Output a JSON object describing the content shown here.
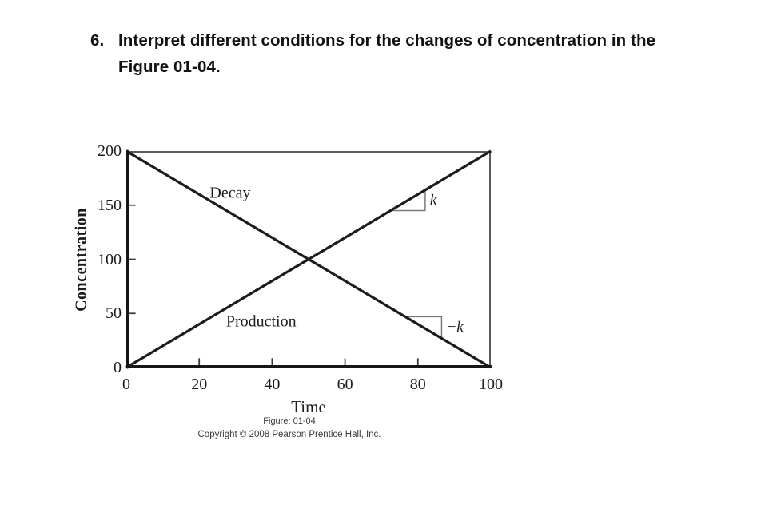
{
  "question": {
    "number": "6.",
    "line1": "Interpret different conditions for the changes of concentration in the",
    "line2": "Figure 01-04."
  },
  "figure": {
    "caption_figure": "Figure: 01-04",
    "caption_copyright": "Copyright © 2008 Pearson Prentice Hall, Inc."
  },
  "chart_data": {
    "type": "line",
    "title": "",
    "xlabel": "Time",
    "ylabel": "Concentration",
    "xlim": [
      0,
      100
    ],
    "ylim": [
      0,
      200
    ],
    "xticks": [
      0,
      20,
      40,
      60,
      80,
      100
    ],
    "yticks": [
      0,
      50,
      100,
      150,
      200
    ],
    "grid": false,
    "legend": "inline-labels",
    "line_color": "#1c1c1c",
    "frame_color": "#5a5a5a",
    "marker_color": "#7a7a7a",
    "series": [
      {
        "name": "Decay",
        "x": [
          0,
          100
        ],
        "y": [
          200,
          0
        ]
      },
      {
        "name": "Production",
        "x": [
          0,
          100
        ],
        "y": [
          0,
          200
        ]
      }
    ],
    "series_labels": [
      {
        "text": "Decay",
        "x": 28.5,
        "y": 161
      },
      {
        "text": "Production",
        "x": 37,
        "y": 42
      }
    ],
    "slope_markers": [
      {
        "text": "k",
        "series": "Production",
        "x1": 72.5,
        "x2": 82
      },
      {
        "text": "−k",
        "series": "Decay",
        "x1": 76.5,
        "x2": 86.5
      }
    ],
    "intersection_note": ""
  }
}
